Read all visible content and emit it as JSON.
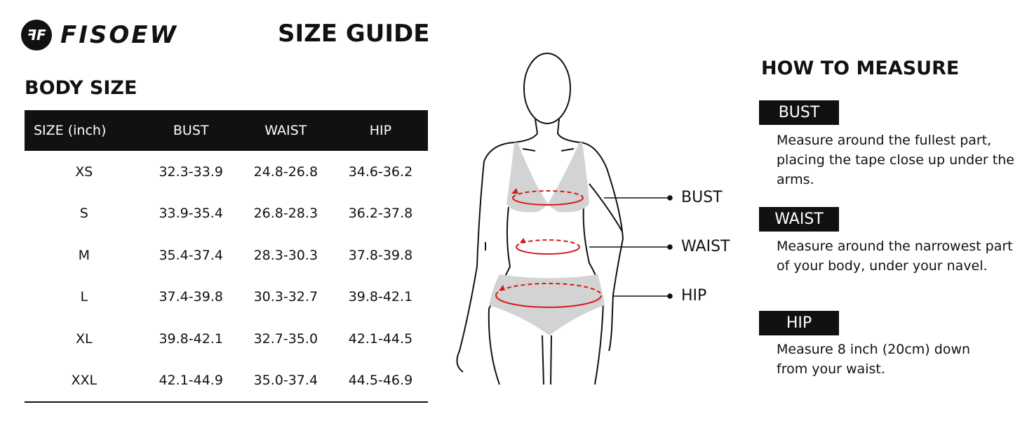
{
  "brand": {
    "name": "FISOEW",
    "logo_text": "FF"
  },
  "title": "SIZE GUIDE",
  "body_size": {
    "heading": "BODY SIZE",
    "columns": [
      "SIZE (inch)",
      "BUST",
      "WAIST",
      "HIP"
    ],
    "rows": [
      [
        "XS",
        "32.3-33.9",
        "24.8-26.8",
        "34.6-36.2"
      ],
      [
        "S",
        "33.9-35.4",
        "26.8-28.3",
        "36.2-37.8"
      ],
      [
        "M",
        "35.4-37.4",
        "28.3-30.3",
        "37.8-39.8"
      ],
      [
        "L",
        "37.4-39.8",
        "30.3-32.7",
        "39.8-42.1"
      ],
      [
        "XL",
        "39.8-42.1",
        "32.7-35.0",
        "42.1-44.5"
      ],
      [
        "XXL",
        "42.1-44.9",
        "35.0-37.4",
        "44.5-46.9"
      ]
    ]
  },
  "figure": {
    "labels": {
      "bust": "BUST",
      "waist": "WAIST",
      "hip": "HIP"
    },
    "accent": "#d7191c",
    "garment": "#d3d3d3"
  },
  "how_to_measure": {
    "heading": "HOW TO MEASURE",
    "items": [
      {
        "label": "BUST",
        "text": "Measure around the fullest part, placing the tape close up under the arms."
      },
      {
        "label": "WAIST",
        "text": "Measure around the narrowest part of your body, under your navel."
      },
      {
        "label": "HIP",
        "text": "Measure 8 inch (20cm) down from your waist."
      }
    ]
  }
}
